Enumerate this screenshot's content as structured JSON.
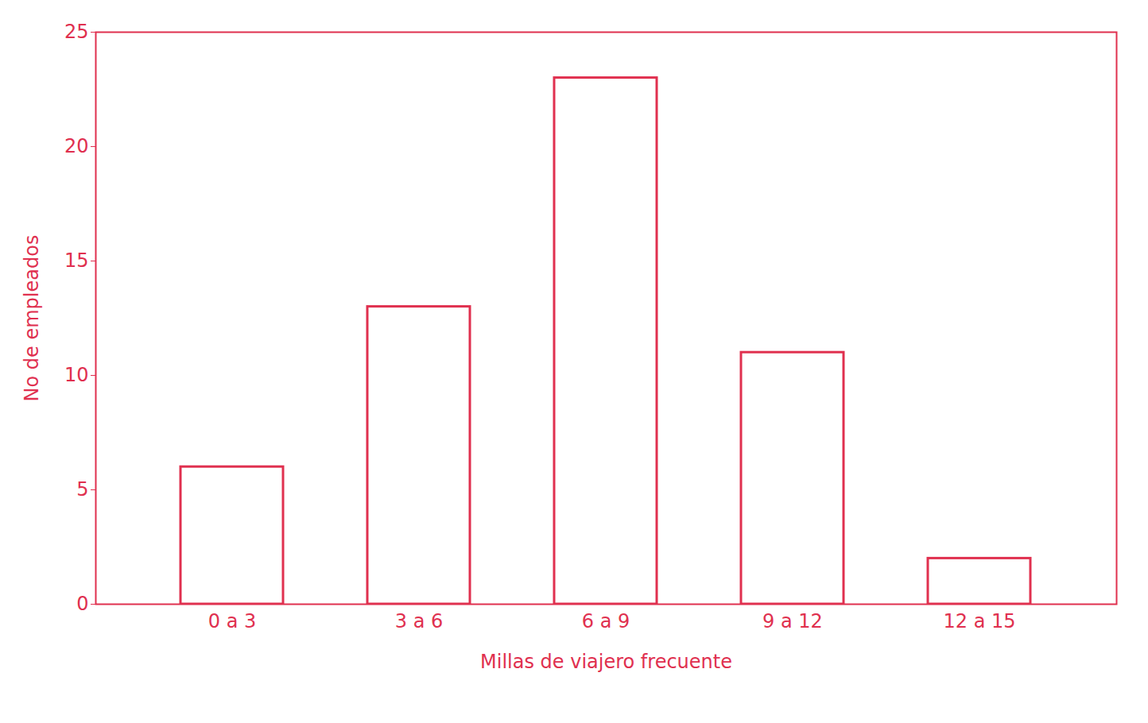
{
  "chart_data": {
    "type": "bar",
    "x_label": "Millas de viajero frecuente",
    "y_label": "No de empleados",
    "categories": [
      "0 a 3",
      "3 a 6",
      "6 a 9",
      "9 a 12",
      "12 a 15"
    ],
    "values": [
      6,
      13,
      23,
      11,
      2
    ],
    "color": "#e0304f",
    "ylim": [
      0,
      25
    ],
    "yticks": [
      0,
      5,
      10,
      15,
      20,
      25
    ],
    "grid": false
  }
}
